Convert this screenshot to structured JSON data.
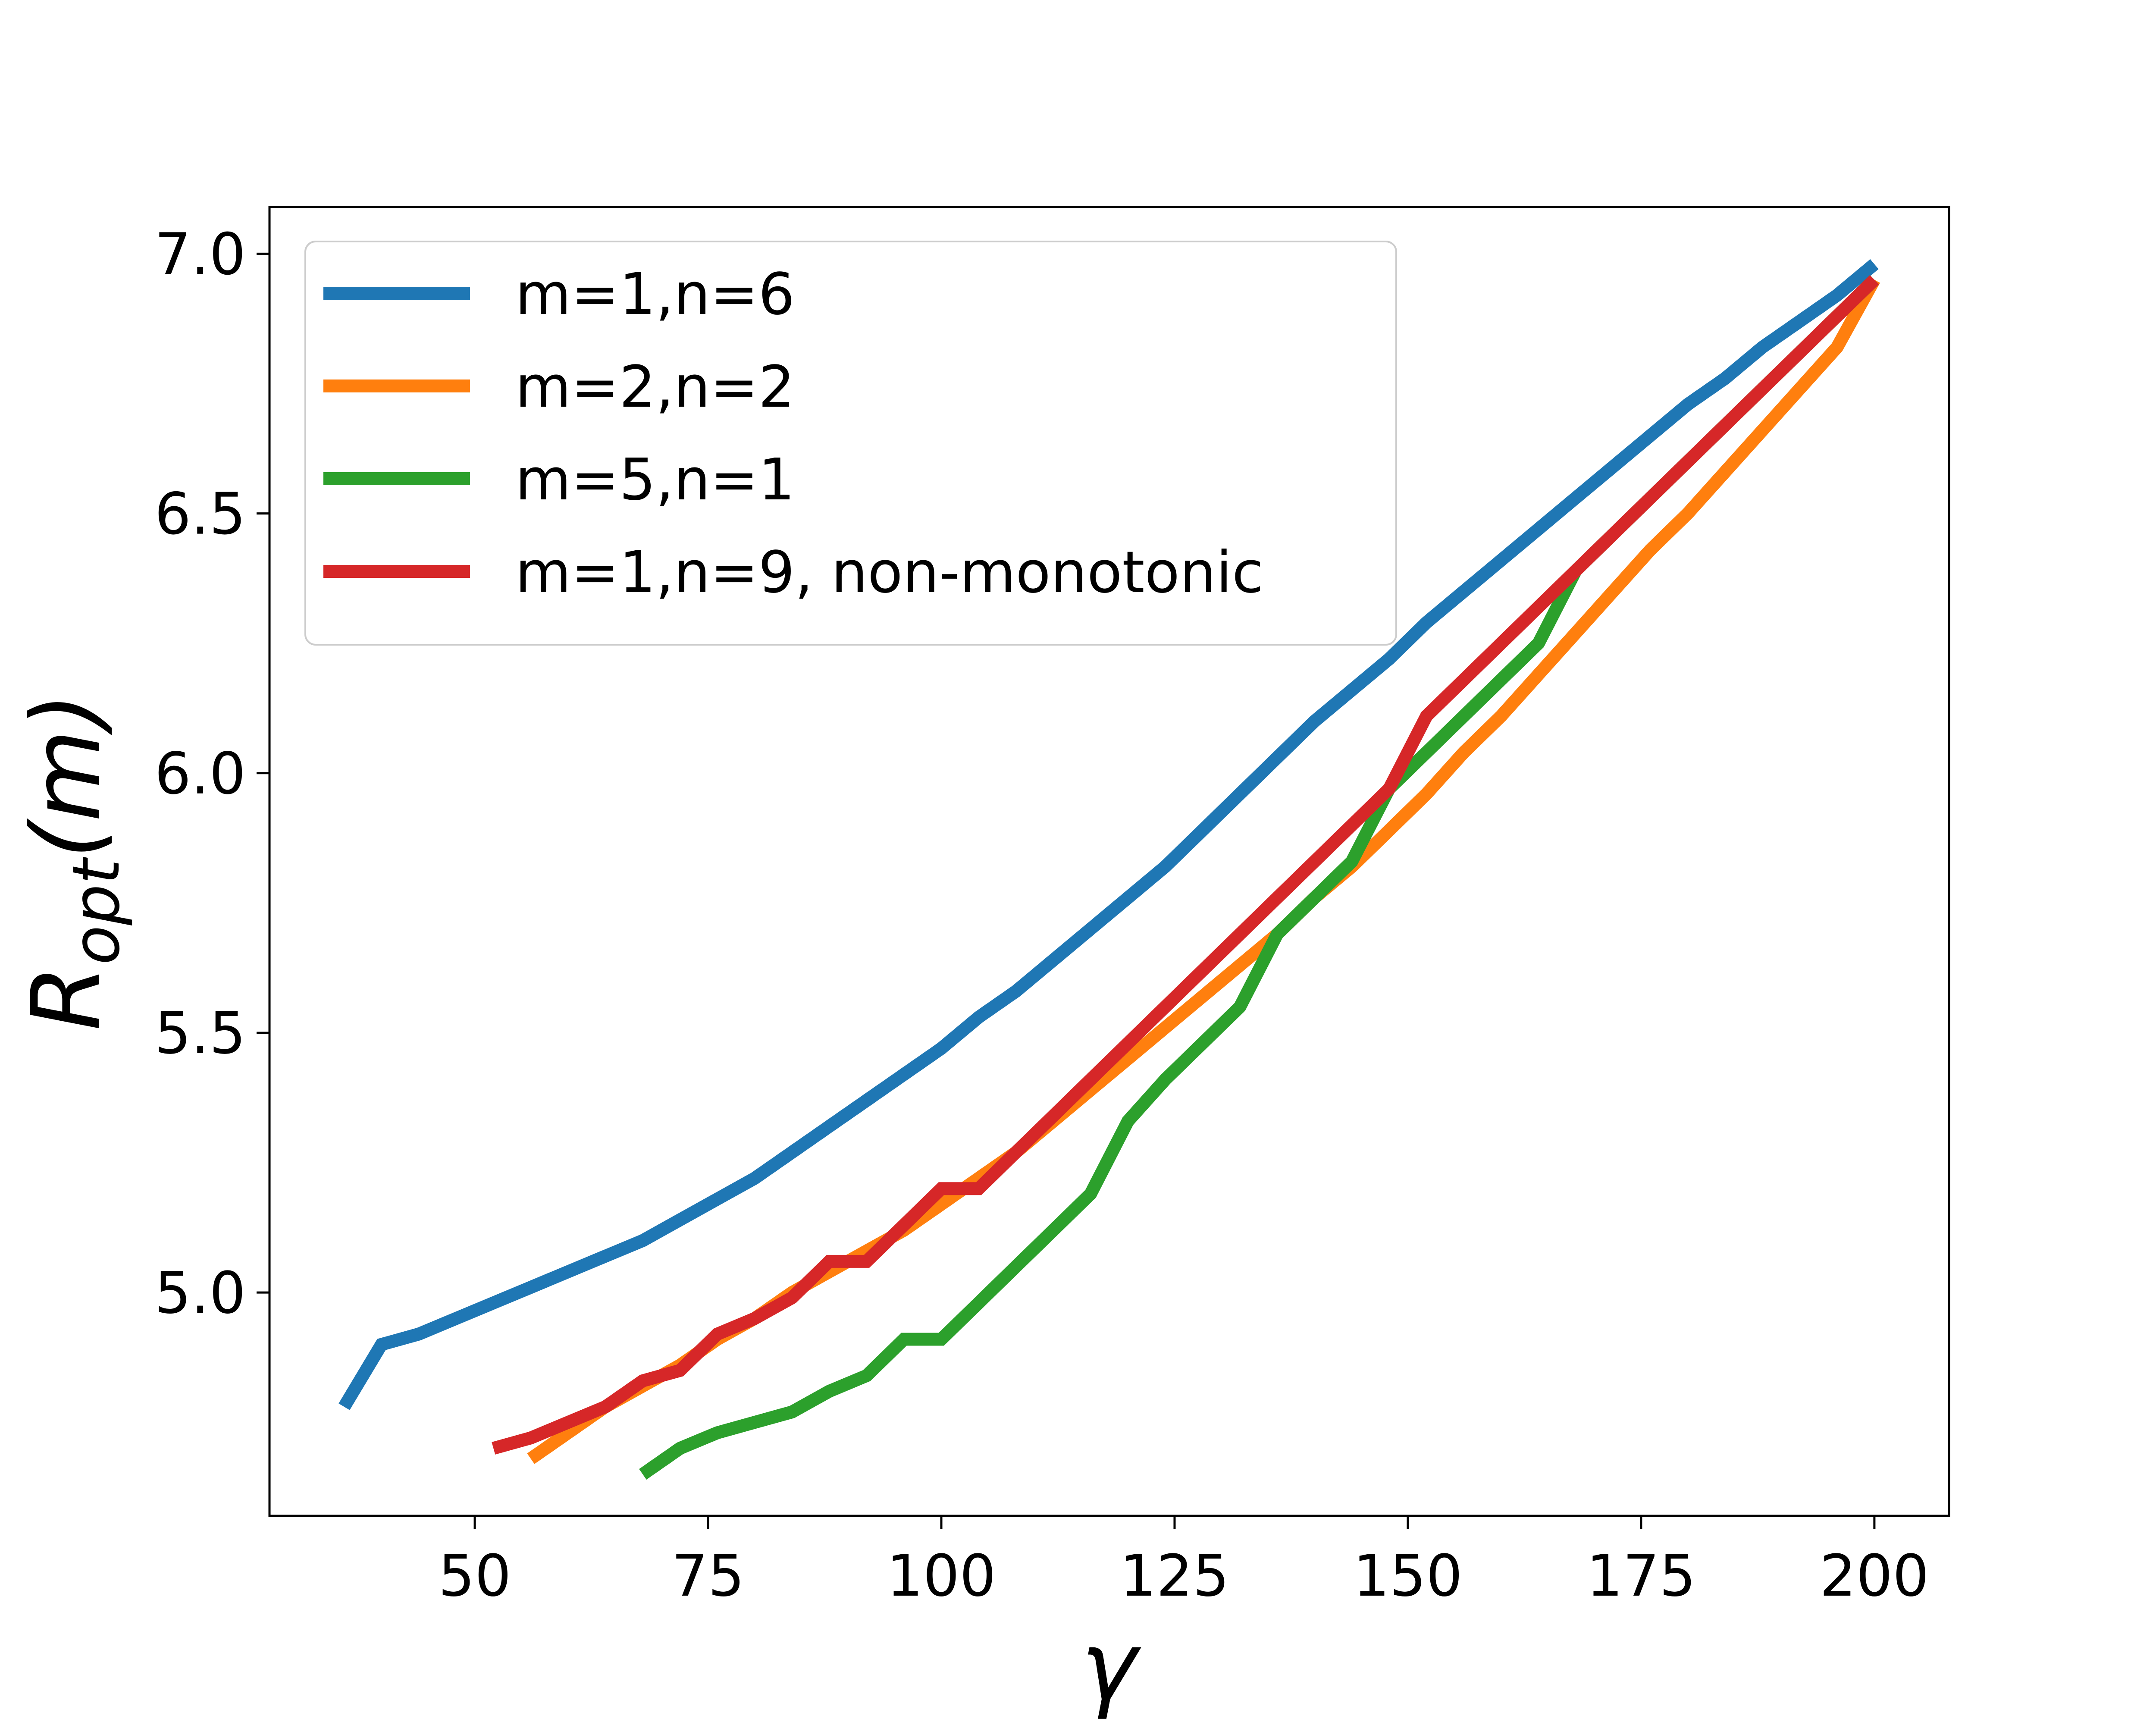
{
  "chart_data": {
    "type": "line",
    "xlabel": "γ",
    "ylabel_main": "R",
    "ylabel_sub": "opt",
    "ylabel_suffix": "(m)",
    "xlim": [
      28,
      208
    ],
    "ylim": [
      4.57,
      7.09
    ],
    "xticks": [
      50,
      75,
      100,
      125,
      150,
      175,
      200
    ],
    "yticks": [
      5.0,
      5.5,
      6.0,
      6.5,
      7.0
    ],
    "xtick_labels": [
      "50",
      "75",
      "100",
      "125",
      "150",
      "175",
      "200"
    ],
    "ytick_labels": [
      "5.0",
      "5.5",
      "6.0",
      "6.5",
      "7.0"
    ],
    "grid": false,
    "legend_position": "upper-left",
    "series": [
      {
        "name": "m=1,n=6",
        "color": "#1f77b4",
        "x": [
          36,
          40,
          44,
          48,
          52,
          56,
          60,
          64,
          68,
          72,
          76,
          80,
          84,
          88,
          92,
          96,
          100,
          104,
          108,
          112,
          116,
          120,
          124,
          128,
          132,
          136,
          140,
          144,
          148,
          152,
          156,
          160,
          164,
          168,
          172,
          176,
          180,
          184,
          188,
          192,
          196,
          200
        ],
        "y": [
          4.78,
          4.9,
          4.92,
          4.95,
          4.98,
          5.01,
          5.04,
          5.07,
          5.1,
          5.14,
          5.18,
          5.22,
          5.27,
          5.32,
          5.37,
          5.42,
          5.47,
          5.53,
          5.58,
          5.64,
          5.7,
          5.76,
          5.82,
          5.89,
          5.96,
          6.03,
          6.1,
          6.16,
          6.22,
          6.29,
          6.35,
          6.41,
          6.47,
          6.53,
          6.59,
          6.65,
          6.71,
          6.76,
          6.82,
          6.87,
          6.92,
          6.98
        ]
      },
      {
        "name": "m=2,n=2",
        "color": "#ff7f0e",
        "x": [
          56,
          60,
          64,
          68,
          72,
          76,
          80,
          84,
          88,
          92,
          96,
          100,
          104,
          108,
          112,
          116,
          120,
          124,
          128,
          132,
          136,
          140,
          144,
          148,
          152,
          156,
          160,
          164,
          168,
          172,
          176,
          180,
          184,
          188,
          192,
          196,
          200
        ],
        "y": [
          4.68,
          4.73,
          4.78,
          4.82,
          4.86,
          4.91,
          4.95,
          5.0,
          5.04,
          5.08,
          5.12,
          5.17,
          5.22,
          5.27,
          5.33,
          5.39,
          5.45,
          5.51,
          5.57,
          5.63,
          5.69,
          5.76,
          5.82,
          5.89,
          5.96,
          6.04,
          6.11,
          6.19,
          6.27,
          6.35,
          6.43,
          6.5,
          6.58,
          6.66,
          6.74,
          6.82,
          6.95
        ]
      },
      {
        "name": "m=5,n=1",
        "color": "#2ca02c",
        "x": [
          68,
          72,
          76,
          80,
          84,
          88,
          92,
          96,
          100,
          104,
          108,
          112,
          116,
          120,
          124,
          128,
          132,
          136,
          140,
          144,
          148,
          152,
          156,
          160,
          164,
          168,
          172,
          176,
          180,
          184,
          188,
          192,
          196,
          200
        ],
        "y": [
          4.65,
          4.7,
          4.73,
          4.75,
          4.77,
          4.81,
          4.84,
          4.91,
          4.91,
          4.98,
          5.05,
          5.12,
          5.19,
          5.33,
          5.41,
          5.48,
          5.55,
          5.69,
          5.76,
          5.83,
          5.97,
          6.04,
          6.11,
          6.18,
          6.25,
          6.39,
          6.46,
          6.53,
          6.6,
          6.67,
          6.74,
          6.81,
          6.88,
          6.95
        ]
      },
      {
        "name": "m=1,n=9, non-monotonic",
        "color": "#d62728",
        "x": [
          52,
          56,
          60,
          64,
          68,
          72,
          76,
          80,
          84,
          88,
          92,
          96,
          100,
          104,
          108,
          112,
          116,
          120,
          124,
          128,
          132,
          136,
          140,
          144,
          148,
          152,
          156,
          160,
          164,
          168,
          172,
          176,
          180,
          184,
          188,
          192,
          196,
          200
        ],
        "y": [
          4.7,
          4.72,
          4.75,
          4.78,
          4.83,
          4.85,
          4.92,
          4.95,
          4.99,
          5.06,
          5.06,
          5.13,
          5.2,
          5.2,
          5.27,
          5.34,
          5.41,
          5.48,
          5.55,
          5.62,
          5.69,
          5.76,
          5.83,
          5.9,
          5.97,
          6.11,
          6.18,
          6.25,
          6.32,
          6.39,
          6.46,
          6.53,
          6.6,
          6.67,
          6.74,
          6.81,
          6.88,
          6.95
        ]
      }
    ]
  }
}
